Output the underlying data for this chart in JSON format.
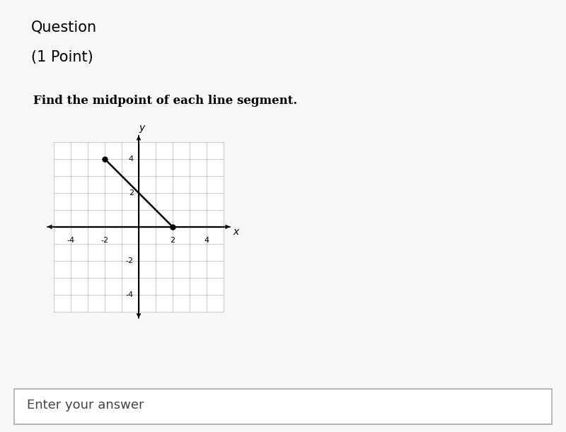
{
  "question_line1": "Question",
  "question_line2": "(1 Point)",
  "question_text": "Find the midpoint of each line segment.",
  "point1": [
    -2,
    4
  ],
  "point2": [
    2,
    0
  ],
  "x_range": [
    -5,
    5
  ],
  "y_range": [
    -5,
    5
  ],
  "x_ticks": [
    -4,
    -2,
    2,
    4
  ],
  "y_ticks": [
    -4,
    -2,
    2,
    4
  ],
  "grid_color": "#b0b8c0",
  "line_color": "#000000",
  "dot_color": "#000000",
  "axis_color": "#000000",
  "bg_color_header": "#dde6ee",
  "bg_color_body": "#f5f7f8",
  "bg_color_card": "#ffffff",
  "bg_color_footer": "#f5f7f8",
  "answer_box_text": "Enter your answer",
  "dot_size": 5,
  "line_width": 1.8,
  "header_fontsize": 15,
  "question_fontsize": 12,
  "tick_fontsize": 8,
  "axis_label_fontsize": 10
}
